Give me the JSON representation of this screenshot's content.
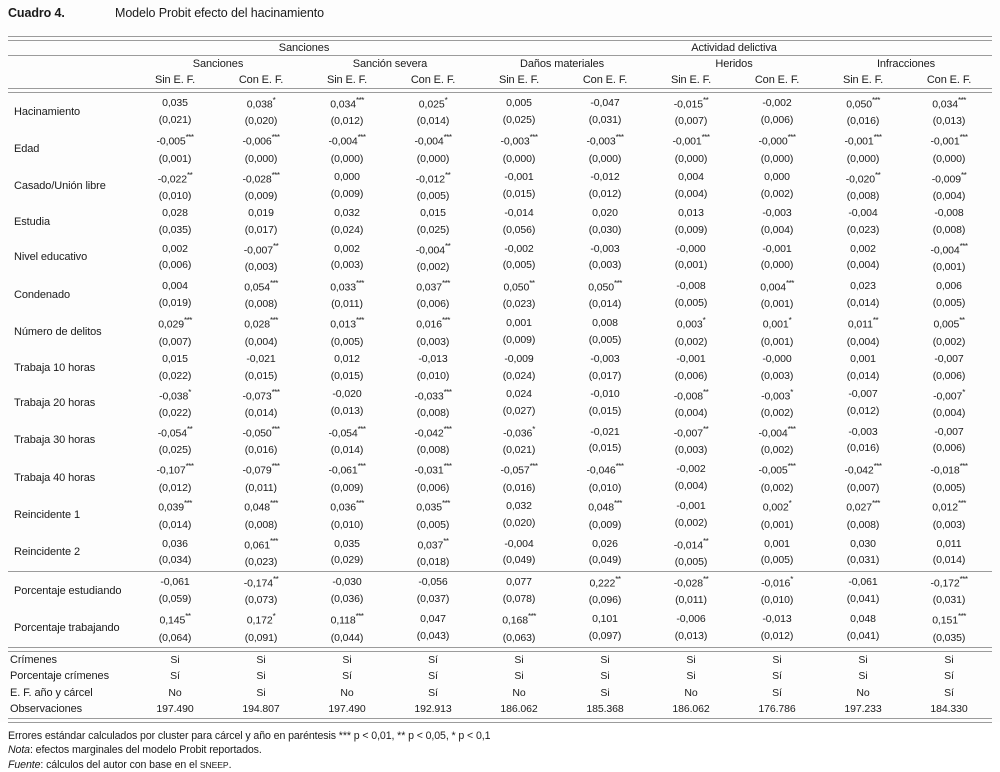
{
  "title": {
    "label": "Cuadro 4.",
    "text": "Modelo Probit efecto del hacinamiento"
  },
  "table": {
    "top_groups": [
      {
        "label": "Sanciones",
        "span": 4
      },
      {
        "label": "Actividad delictiva",
        "span": 6
      }
    ],
    "sub_groups": [
      "Sanciones",
      "Sanción severa",
      "Daños materiales",
      "Heridos",
      "Infracciones"
    ],
    "col_header_pair": [
      "Sin E. F.",
      "Con E. F."
    ],
    "rows": [
      {
        "label": "Hacinamiento",
        "coef": [
          "0,035",
          "0,038*",
          "0,034***",
          "0,025*",
          "0,005",
          "-0,047",
          "-0,015**",
          "-0,002",
          "0,050***",
          "0,034***"
        ],
        "se": [
          "(0,021)",
          "(0,020)",
          "(0,012)",
          "(0,014)",
          "(0,025)",
          "(0,031)",
          "(0,007)",
          "(0,006)",
          "(0,016)",
          "(0,013)"
        ]
      },
      {
        "label": "Edad",
        "coef": [
          "-0,005***",
          "-0,006***",
          "-0,004***",
          "-0,004***",
          "-0,003***",
          "-0,003***",
          "-0,001***",
          "-0,000***",
          "-0,001***",
          "-0,001***"
        ],
        "se": [
          "(0,001)",
          "(0,000)",
          "(0,000)",
          "(0,000)",
          "(0,000)",
          "(0,000)",
          "(0,000)",
          "(0,000)",
          "(0,000)",
          "(0,000)"
        ]
      },
      {
        "label": "Casado/Unión libre",
        "coef": [
          "-0,022**",
          "-0,028***",
          "0,000",
          "-0,012**",
          "-0,001",
          "-0,012",
          "0,004",
          "0,000",
          "-0,020**",
          "-0,009**"
        ],
        "se": [
          "(0,010)",
          "(0,009)",
          "(0,009)",
          "(0,005)",
          "(0,015)",
          "(0,012)",
          "(0,004)",
          "(0,002)",
          "(0,008)",
          "(0,004)"
        ]
      },
      {
        "label": "Estudia",
        "coef": [
          "0,028",
          "0,019",
          "0,032",
          "0,015",
          "-0,014",
          "0,020",
          "0,013",
          "-0,003",
          "-0,004",
          "-0,008"
        ],
        "se": [
          "(0,035)",
          "(0,017)",
          "(0,024)",
          "(0,025)",
          "(0,056)",
          "(0,030)",
          "(0,009)",
          "(0,004)",
          "(0,023)",
          "(0,008)"
        ]
      },
      {
        "label": "Nivel educativo",
        "coef": [
          "0,002",
          "-0,007**",
          "0,002",
          "-0,004**",
          "-0,002",
          "-0,003",
          "-0,000",
          "-0,001",
          "0,002",
          "-0,004***"
        ],
        "se": [
          "(0,006)",
          "(0,003)",
          "(0,003)",
          "(0,002)",
          "(0,005)",
          "(0,003)",
          "(0,001)",
          "(0,000)",
          "(0,004)",
          "(0,001)"
        ]
      },
      {
        "label": "Condenado",
        "coef": [
          "0,004",
          "0,054***",
          "0,033***",
          "0,037***",
          "0,050**",
          "0,050***",
          "-0,008",
          "0,004***",
          "0,023",
          "0,006"
        ],
        "se": [
          "(0,019)",
          "(0,008)",
          "(0,011)",
          "(0,006)",
          "(0,023)",
          "(0,014)",
          "(0,005)",
          "(0,001)",
          "(0,014)",
          "(0,005)"
        ]
      },
      {
        "label": "Número de delitos",
        "coef": [
          "0,029***",
          "0,028***",
          "0,013***",
          "0,016***",
          "0,001",
          "0,008",
          "0,003*",
          "0,001*",
          "0,011**",
          "0,005**"
        ],
        "se": [
          "(0,007)",
          "(0,004)",
          "(0,005)",
          "(0,003)",
          "(0,009)",
          "(0,005)",
          "(0,002)",
          "(0,001)",
          "(0,004)",
          "(0,002)"
        ]
      },
      {
        "label": "Trabaja 10 horas",
        "coef": [
          "0,015",
          "-0,021",
          "0,012",
          "-0,013",
          "-0,009",
          "-0,003",
          "-0,001",
          "-0,000",
          "0,001",
          "-0,007"
        ],
        "se": [
          "(0,022)",
          "(0,015)",
          "(0,015)",
          "(0,010)",
          "(0,024)",
          "(0,017)",
          "(0,006)",
          "(0,003)",
          "(0,014)",
          "(0,006)"
        ]
      },
      {
        "label": "Trabaja 20 horas",
        "coef": [
          "-0,038*",
          "-0,073***",
          "-0,020",
          "-0,033***",
          "0,024",
          "-0,010",
          "-0,008**",
          "-0,003*",
          "-0,007",
          "-0,007*"
        ],
        "se": [
          "(0,022)",
          "(0,014)",
          "(0,013)",
          "(0,008)",
          "(0,027)",
          "(0,015)",
          "(0,004)",
          "(0,002)",
          "(0,012)",
          "(0,004)"
        ]
      },
      {
        "label": "Trabaja 30 horas",
        "coef": [
          "-0,054**",
          "-0,050***",
          "-0,054***",
          "-0,042***",
          "-0,036*",
          "-0,021",
          "-0,007**",
          "-0,004***",
          "-0,003",
          "-0,007"
        ],
        "se": [
          "(0,025)",
          "(0,016)",
          "(0,014)",
          "(0,008)",
          "(0,021)",
          "(0,015)",
          "(0,003)",
          "(0,002)",
          "(0,016)",
          "(0,006)"
        ]
      },
      {
        "label": "Trabaja 40 horas",
        "coef": [
          "-0,107***",
          "-0,079***",
          "-0,061***",
          "-0,031***",
          "-0,057***",
          "-0,046***",
          "-0,002",
          "-0,005***",
          "-0,042***",
          "-0,018***"
        ],
        "se": [
          "(0,012)",
          "(0,011)",
          "(0,009)",
          "(0,006)",
          "(0,016)",
          "(0,010)",
          "(0,004)",
          "(0,002)",
          "(0,007)",
          "(0,005)"
        ]
      },
      {
        "label": "Reincidente 1",
        "coef": [
          "0,039***",
          "0,048***",
          "0,036***",
          "0,035***",
          "0,032",
          "0,048***",
          "-0,001",
          "0,002*",
          "0,027***",
          "0,012***"
        ],
        "se": [
          "(0,014)",
          "(0,008)",
          "(0,010)",
          "(0,005)",
          "(0,020)",
          "(0,009)",
          "(0,002)",
          "(0,001)",
          "(0,008)",
          "(0,003)"
        ]
      },
      {
        "label": "Reincidente 2",
        "coef": [
          "0,036",
          "0,061***",
          "0,035",
          "0,037**",
          "-0,004",
          "0,026",
          "-0,014**",
          "0,001",
          "0,030",
          "0,011"
        ],
        "se": [
          "(0,034)",
          "(0,023)",
          "(0,029)",
          "(0,018)",
          "(0,049)",
          "(0,049)",
          "(0,005)",
          "(0,005)",
          "(0,031)",
          "(0,014)"
        ]
      },
      {
        "label": "Porcentaje estudiando",
        "separator_before": true,
        "coef": [
          "-0,061",
          "-0,174**",
          "-0,030",
          "-0,056",
          "0,077",
          "0,222**",
          "-0,028**",
          "-0,016*",
          "-0,061",
          "-0,172***"
        ],
        "se": [
          "(0,059)",
          "(0,073)",
          "(0,036)",
          "(0,037)",
          "(0,078)",
          "(0,096)",
          "(0,011)",
          "(0,010)",
          "(0,041)",
          "(0,031)"
        ]
      },
      {
        "label": "Porcentaje trabajando",
        "coef": [
          "0,145**",
          "0,172*",
          "0,118***",
          "0,047",
          "0,168***",
          "0,101",
          "-0,006",
          "-0,013",
          "0,048",
          "0,151***"
        ],
        "se": [
          "(0,064)",
          "(0,091)",
          "(0,044)",
          "(0,043)",
          "(0,063)",
          "(0,097)",
          "(0,013)",
          "(0,012)",
          "(0,041)",
          "(0,035)"
        ]
      }
    ],
    "bottom_rows": [
      {
        "label": "Crímenes",
        "values": [
          "Si",
          "Si",
          "Si",
          "Sí",
          "Si",
          "Si",
          "Si",
          "Si",
          "Si",
          "Si"
        ]
      },
      {
        "label": "Porcentaje crímenes",
        "values": [
          "Sí",
          "Si",
          "Sí",
          "Sí",
          "Si",
          "Si",
          "Si",
          "Sí",
          "Si",
          "Sí"
        ]
      },
      {
        "label": "E. F. año y cárcel",
        "values": [
          "No",
          "Si",
          "No",
          "Sí",
          "No",
          "Si",
          "No",
          "Sí",
          "No",
          "Sí"
        ]
      },
      {
        "label": "Observaciones",
        "values": [
          "197.490",
          "194.807",
          "197.490",
          "192.913",
          "186.062",
          "185.368",
          "186.062",
          "176.786",
          "197.233",
          "184.330"
        ]
      }
    ]
  },
  "footnotes": {
    "line1": "Errores estándar calculados por cluster para cárcel y año en paréntesis *** p < 0,01, ** p < 0,05, * p < 0,1",
    "nota_prefix": "Nota",
    "nota_text": ": efectos marginales del modelo Probit reportados.",
    "fuente_prefix": "Fuente",
    "fuente_text": ": cálculos del autor con base en el ",
    "fuente_smallcaps": "SNEEP",
    "fuente_suffix": "."
  }
}
